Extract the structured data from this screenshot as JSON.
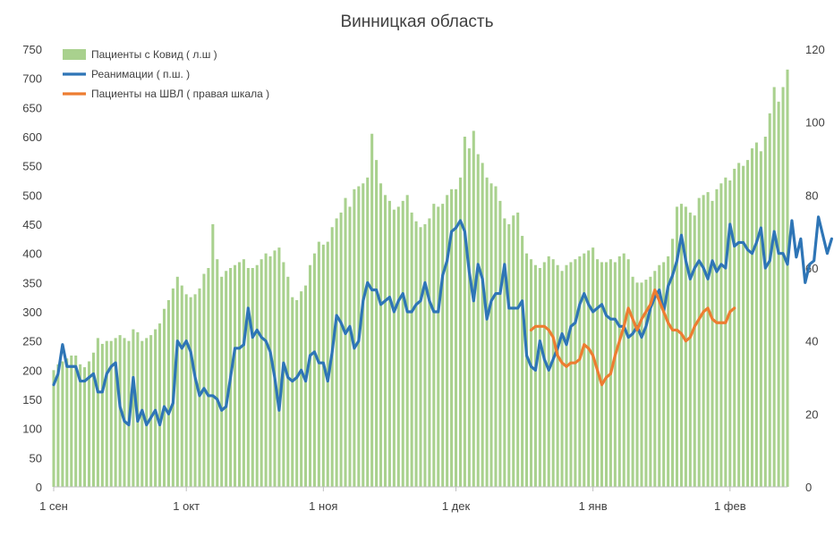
{
  "chart_data": {
    "type": "bar+line",
    "title": "Винницкая область",
    "x_tick_labels": [
      "1 сен",
      "1 окт",
      "1 ноя",
      "1 дек",
      "1 янв",
      "1 фев"
    ],
    "x_tick_days": [
      0,
      30,
      61,
      91,
      122,
      153
    ],
    "left_axis": {
      "min": 0,
      "max": 750,
      "step": 50,
      "ticks": [
        "0",
        "50",
        "100",
        "150",
        "200",
        "250",
        "300",
        "350",
        "400",
        "450",
        "500",
        "550",
        "600",
        "650",
        "700",
        "750"
      ]
    },
    "right_axis": {
      "min": 0,
      "max": 120,
      "step": 20,
      "ticks": [
        "0",
        "20",
        "40",
        "60",
        "80",
        "100",
        "120"
      ]
    },
    "legend": [
      {
        "label": "Пациенты с Ковид ( л.ш )",
        "kind": "bar",
        "color": "#a9d18e"
      },
      {
        "label": "Реанимации ( п.ш. )",
        "kind": "line",
        "color": "#2e75b6"
      },
      {
        "label": "Пациенты на ШВЛ ( правая шкала )",
        "kind": "line",
        "color": "#ed7d31"
      }
    ],
    "series": [
      {
        "name": "Пациенты с Ковид ( л.ш )",
        "axis": "left",
        "color": "#a9d18e",
        "values": [
          200,
          210,
          215,
          220,
          225,
          225,
          210,
          205,
          215,
          230,
          255,
          245,
          250,
          250,
          255,
          260,
          255,
          250,
          270,
          265,
          250,
          255,
          260,
          270,
          280,
          305,
          320,
          340,
          360,
          345,
          330,
          325,
          330,
          340,
          365,
          375,
          450,
          390,
          360,
          370,
          375,
          380,
          385,
          390,
          375,
          375,
          380,
          390,
          400,
          395,
          405,
          410,
          385,
          360,
          325,
          320,
          335,
          345,
          380,
          400,
          420,
          415,
          420,
          445,
          460,
          470,
          495,
          480,
          510,
          515,
          520,
          530,
          605,
          560,
          520,
          500,
          490,
          475,
          480,
          490,
          500,
          470,
          455,
          445,
          450,
          460,
          485,
          480,
          485,
          500,
          510,
          510,
          530,
          600,
          580,
          610,
          570,
          555,
          530,
          520,
          515,
          490,
          460,
          450,
          465,
          470,
          430,
          400,
          390,
          380,
          375,
          385,
          395,
          390,
          380,
          370,
          380,
          385,
          390,
          395,
          400,
          405,
          410,
          390,
          385,
          385,
          390,
          385,
          395,
          400,
          390,
          360,
          350,
          350,
          355,
          360,
          370,
          380,
          385,
          395,
          425,
          480,
          485,
          480,
          470,
          465,
          495,
          500,
          505,
          490,
          510,
          520,
          530,
          525,
          545,
          555,
          550,
          560,
          580,
          590,
          575,
          600,
          640,
          685,
          660,
          685,
          715
        ]
      },
      {
        "name": "Реанимации ( п.ш. )",
        "axis": "right",
        "color": "#2e75b6",
        "values": [
          28,
          31,
          39,
          33,
          33,
          33,
          29,
          29,
          30,
          31,
          26,
          26,
          31,
          33,
          34,
          22,
          18,
          17,
          30,
          18,
          21,
          17,
          19,
          21,
          17,
          22,
          20,
          23,
          40,
          38,
          40,
          37,
          30,
          25,
          27,
          25,
          25,
          24,
          21,
          22,
          30,
          38,
          38,
          39,
          49,
          41,
          43,
          41,
          40,
          37,
          30,
          21,
          34,
          30,
          29,
          30,
          32,
          29,
          36,
          37,
          34,
          34,
          29,
          37,
          47,
          45,
          42,
          44,
          38,
          40,
          51,
          56,
          54,
          54,
          50,
          51,
          52,
          48,
          51,
          53,
          48,
          48,
          50,
          51,
          56,
          51,
          48,
          48,
          58,
          62,
          70,
          71,
          73,
          70,
          59,
          51,
          61,
          57,
          46,
          51,
          53,
          53,
          61,
          49,
          49,
          49,
          51,
          36,
          33,
          32,
          40,
          35,
          32,
          35,
          38,
          42,
          39,
          44,
          45,
          50,
          53,
          50,
          48,
          49,
          50,
          47,
          46,
          46,
          44,
          44,
          41,
          42,
          44,
          41,
          44,
          49,
          52,
          54,
          48,
          55,
          58,
          62,
          69,
          62,
          57,
          60,
          62,
          60,
          57,
          62,
          59,
          61,
          60,
          72,
          66,
          67,
          67,
          65,
          64,
          67,
          71,
          60,
          62,
          70,
          64,
          64,
          61,
          73,
          63,
          68,
          56,
          61,
          62,
          74,
          69,
          64,
          68
        ]
      },
      {
        "name": "Пациенты на ШВЛ ( правая шкала )",
        "axis": "right",
        "color": "#ed7d31",
        "start_index": 108,
        "values": [
          43,
          44,
          44,
          44,
          43,
          41,
          36,
          34,
          33,
          34,
          34,
          35,
          39,
          38,
          36,
          32,
          28,
          30,
          31,
          36,
          40,
          44,
          49,
          46,
          43,
          46,
          48,
          50,
          54,
          51,
          48,
          45,
          43,
          43,
          42,
          40,
          41,
          44,
          46,
          48,
          49,
          46,
          45,
          45,
          45,
          48,
          49
        ]
      }
    ]
  }
}
